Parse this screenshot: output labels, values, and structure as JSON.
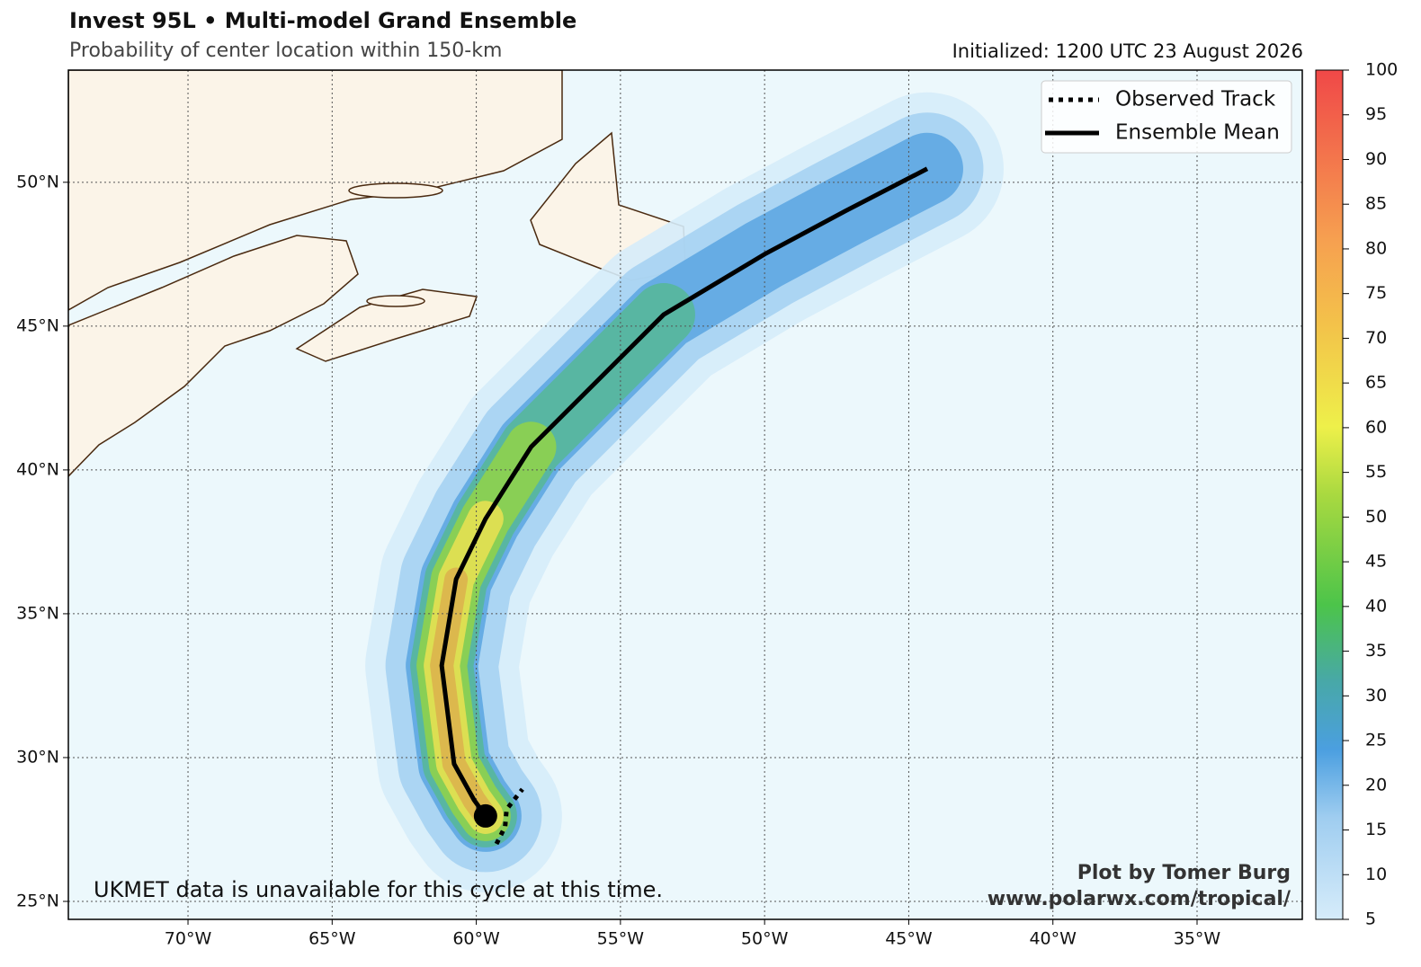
{
  "header": {
    "title": "Invest 95L • Multi-model Grand Ensemble",
    "subtitle": "Probability of center location within 150-km",
    "initialized": "Initialized: 1200 UTC 23 August 2026"
  },
  "map": {
    "xlim": [
      -74.15,
      -31.35
    ],
    "ylim": [
      24.375,
      53.9
    ],
    "xticks": [
      {
        "value": -70,
        "label": "70°W"
      },
      {
        "value": -65,
        "label": "65°W"
      },
      {
        "value": -60,
        "label": "60°W"
      },
      {
        "value": -55,
        "label": "55°W"
      },
      {
        "value": -50,
        "label": "50°W"
      },
      {
        "value": -45,
        "label": "45°W"
      },
      {
        "value": -40,
        "label": "40°W"
      },
      {
        "value": -35,
        "label": "35°W"
      }
    ],
    "yticks": [
      {
        "value": 25,
        "label": "25°N"
      },
      {
        "value": 30,
        "label": "30°N"
      },
      {
        "value": 35,
        "label": "35°N"
      },
      {
        "value": 40,
        "label": "40°N"
      },
      {
        "value": 45,
        "label": "45°N"
      },
      {
        "value": 50,
        "label": "50°N"
      }
    ]
  },
  "tracks": {
    "observed": {
      "name": "Observed Track",
      "lon": [
        -59.3,
        -59.0,
        -58.95,
        -58.4
      ],
      "lat": [
        27.0,
        27.6,
        28.2,
        28.9
      ]
    },
    "ensemble_mean": {
      "name": "Ensemble Mean",
      "lon": [
        -59.68,
        -60.08,
        -60.77,
        -61.2,
        -60.7,
        -59.68,
        -58.1,
        -53.5,
        -50.0,
        -47.2,
        -44.36
      ],
      "lat": [
        27.97,
        28.53,
        29.78,
        33.2,
        36.2,
        38.3,
        40.8,
        45.4,
        47.5,
        49.0,
        50.47
      ]
    },
    "current_position": {
      "lon": -59.68,
      "lat": 27.97
    }
  },
  "colorbar": {
    "lim": [
      5,
      100
    ],
    "ticks": [
      5,
      10,
      15,
      20,
      25,
      30,
      35,
      40,
      45,
      50,
      55,
      60,
      65,
      70,
      75,
      80,
      85,
      90,
      95,
      100
    ]
  },
  "annotations": {
    "note": "UKMET data is unavailable for this cycle at this time.",
    "credit": "Plot by Tomer Burg",
    "url": "www.polarwx.com/tropical/"
  }
}
